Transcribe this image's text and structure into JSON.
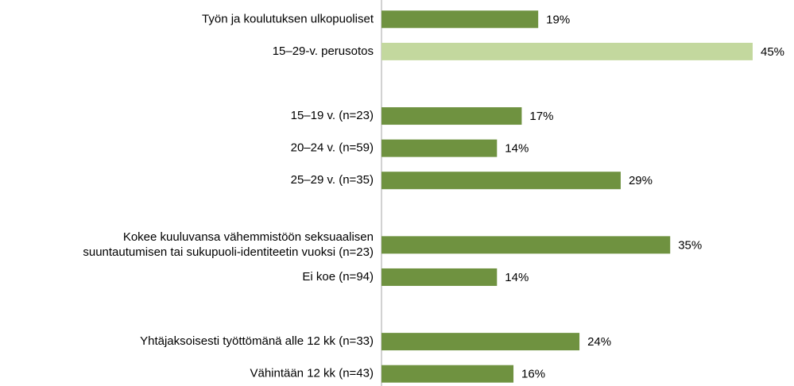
{
  "chart_data": {
    "type": "barh",
    "categories": [
      "Työn ja koulutuksen ulkopuoliset",
      "15–29-v. perusotos",
      null,
      "15–19 v. (n=23)",
      "20–24 v. (n=59)",
      "25–29 v. (n=35)",
      null,
      "Kokee kuuluvansa vähemmistöön seksuaalisen\nsuuntautumisen tai sukupuoli-identiteetin vuoksi (n=23)",
      "Ei koe (n=94)",
      null,
      "Yhtäjaksoisesti työttömänä alle 12 kk (n=33)",
      "Vähintään 12 kk (n=43)"
    ],
    "values": [
      19,
      45,
      null,
      17,
      14,
      29,
      null,
      35,
      14,
      null,
      24,
      16
    ],
    "value_labels": [
      "19%",
      "45%",
      null,
      "17%",
      "14%",
      "29%",
      null,
      "35%",
      "14%",
      null,
      "24%",
      "16%"
    ],
    "colors": [
      "#6f9240",
      "#c3d89e",
      null,
      "#6f9240",
      "#6f9240",
      "#6f9240",
      null,
      "#6f9240",
      "#6f9240",
      null,
      "#6f9240",
      "#6f9240"
    ],
    "xlim": [
      0,
      45
    ]
  }
}
